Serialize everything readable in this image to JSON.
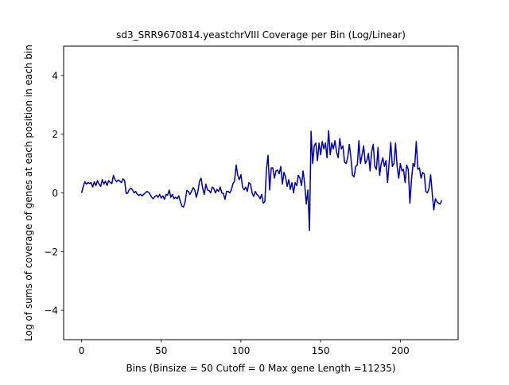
{
  "chart_data": {
    "type": "line",
    "title": "sd3_SRR9670814.yeastchrVIII Coverage per Bin (Log/Linear)",
    "xlabel": "Bins  (Binsize = 50 Cutoff = 0 Max gene Length =11235)",
    "ylabel": "Log of sums of coverage of genes at each position in each bin",
    "xlim": [
      -11.25,
      236.25
    ],
    "ylim": [
      -5,
      5
    ],
    "xticks": [
      0,
      50,
      100,
      150,
      200
    ],
    "yticks": [
      -4,
      -2,
      0,
      2,
      4
    ],
    "xtick_labels": [
      "0",
      "50",
      "100",
      "150",
      "200"
    ],
    "ytick_labels": [
      "−4",
      "−2",
      "0",
      "2",
      "4"
    ],
    "grid": false,
    "line_color": "#00008b",
    "series": [
      {
        "values": [
          0.0,
          0.2,
          0.38,
          0.3,
          0.35,
          0.32,
          0.35,
          0.2,
          0.38,
          0.25,
          0.42,
          0.3,
          0.22,
          0.45,
          0.3,
          0.4,
          0.25,
          0.42,
          0.35,
          0.32,
          0.6,
          0.45,
          0.38,
          0.44,
          0.4,
          0.35,
          0.48,
          0.42,
          -0.02,
          0.0,
          0.12,
          0.16,
          0.1,
          0.0,
          0.05,
          -0.05,
          -0.08,
          -0.05,
          -0.1,
          -0.05,
          0.0,
          0.05,
          0.02,
          -0.05,
          -0.15,
          -0.2,
          -0.12,
          -0.08,
          -0.15,
          -0.05,
          -0.18,
          -0.1,
          -0.22,
          -0.05,
          -0.08,
          0.1,
          -0.15,
          -0.05,
          -0.2,
          -0.15,
          -0.2,
          -0.1,
          -0.3,
          -0.45,
          -0.48,
          -0.3,
          0.08,
          0.05,
          -0.05,
          0.05,
          0.18,
          0.1,
          -0.15,
          0.05,
          0.4,
          0.5,
          0.15,
          -0.05,
          0.3,
          0.1,
          0.08,
          0.0,
          0.2,
          0.15,
          0.0,
          0.12,
          0.05,
          0.2,
          0.0,
          -0.02,
          -0.22,
          0.05,
          0.05,
          0.0,
          0.1,
          0.32,
          0.4,
          0.95,
          0.6,
          0.45,
          0.62,
          0.2,
          0.1,
          0.2,
          0.05,
          0.35,
          0.3,
          0.0,
          -0.12,
          0.05,
          -0.05,
          -0.1,
          -0.2,
          -0.05,
          -0.35,
          -0.3,
          0.8,
          1.28,
          0.1,
          0.85,
          0.85,
          0.5,
          0.75,
          0.78,
          0.65,
          0.9,
          0.3,
          0.7,
          0.55,
          0.22,
          0.45,
          0.12,
          0.35,
          0.0,
          0.35,
          0.25,
          0.6,
          0.5,
          0.25,
          0.75,
          0.3,
          -0.38,
          0.1,
          -1.28,
          2.1,
          1.0,
          1.6,
          1.7,
          1.1,
          1.7,
          1.3,
          1.75,
          1.5,
          1.7,
          1.2,
          2.12,
          1.3,
          1.7,
          1.5,
          1.78,
          1.4,
          1.2,
          1.85,
          1.5,
          1.6,
          1.05,
          1.0,
          1.2,
          1.65,
          1.2,
          0.6,
          0.55,
          0.9,
          0.95,
          1.78,
          1.0,
          1.3,
          1.6,
          1.0,
          1.1,
          1.35,
          0.75,
          1.4,
          1.65,
          0.9,
          0.8,
          1.55,
          0.6,
          1.0,
          1.2,
          0.9,
          1.1,
          0.35,
          1.05,
          1.72,
          0.9,
          1.0,
          1.7,
          0.9,
          0.5,
          1.0,
          0.75,
          0.8,
          0.35,
          0.95,
          0.8,
          -0.35,
          0.45,
          1.0,
          0.9,
          1.75,
          0.8,
          0.85,
          0.5,
          0.7,
          0.65,
          0.05,
          0.0,
          0.15,
          0.62,
          0.0,
          -0.58,
          -0.2,
          -0.3,
          -0.35,
          -0.38,
          -0.25
        ]
      }
    ]
  }
}
